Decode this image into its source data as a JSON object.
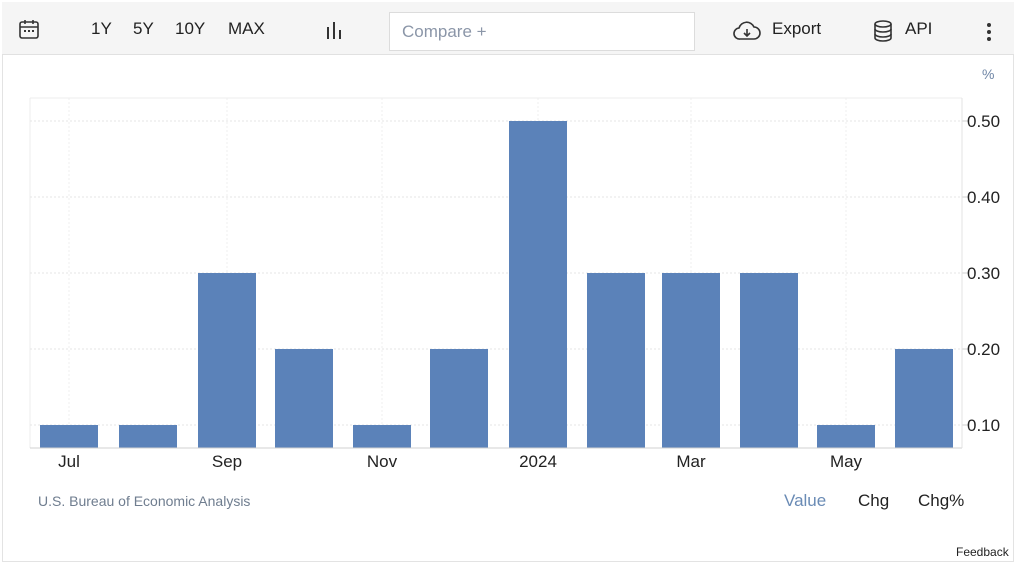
{
  "toolbar": {
    "ranges": [
      "1Y",
      "5Y",
      "10Y",
      "MAX"
    ],
    "compare_placeholder": "Compare +",
    "export_label": "Export",
    "api_label": "API",
    "icons": [
      "calendar-icon",
      "bar-chart-icon",
      "cloud-download-icon",
      "database-icon",
      "more-vertical-icon"
    ]
  },
  "chart_data": {
    "type": "bar",
    "unit_label": "%",
    "values": [
      0.1,
      0.1,
      0.3,
      0.2,
      0.1,
      0.2,
      0.5,
      0.3,
      0.3,
      0.3,
      0.1,
      0.2
    ],
    "x_tick_labels": [
      "Jul",
      "",
      "Sep",
      "",
      "Nov",
      "",
      "2024",
      "",
      "Mar",
      "",
      "May",
      ""
    ],
    "y_ticks": [
      0.1,
      0.2,
      0.3,
      0.4,
      0.5
    ],
    "y_tick_labels": [
      "0.10",
      "0.20",
      "0.30",
      "0.40",
      "0.50"
    ],
    "ylim": [
      0.05,
      0.54
    ],
    "grid": true,
    "bar_color": "#5b82b9",
    "axis_side": "right"
  },
  "footer": {
    "source": "U.S. Bureau of Economic Analysis",
    "modes": [
      "Value",
      "Chg",
      "Chg%"
    ],
    "active_mode": "Value",
    "feedback": "Feedback"
  }
}
